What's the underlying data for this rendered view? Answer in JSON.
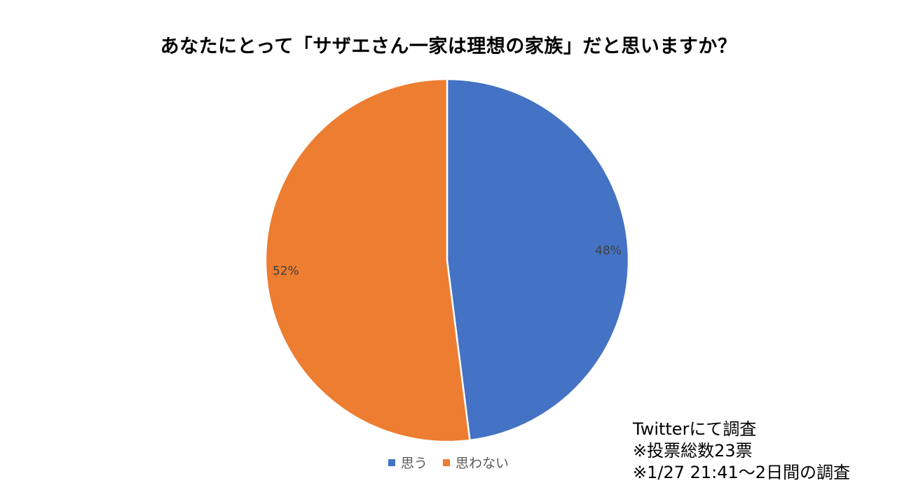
{
  "chart_data": {
    "type": "pie",
    "title": "あなたにとって「サザエさん一家は理想の家族」だと思いますか？",
    "categories": [
      "思う",
      "思わない"
    ],
    "values": [
      48,
      52
    ],
    "labels": [
      "48%",
      "52%"
    ],
    "colors": [
      "#4472C4",
      "#ED7D31"
    ],
    "legend_position": "bottom"
  },
  "notes": [
    "Twitterにて調査",
    "※投票総数23票",
    "※1/27 21:41～2日間の調査"
  ]
}
